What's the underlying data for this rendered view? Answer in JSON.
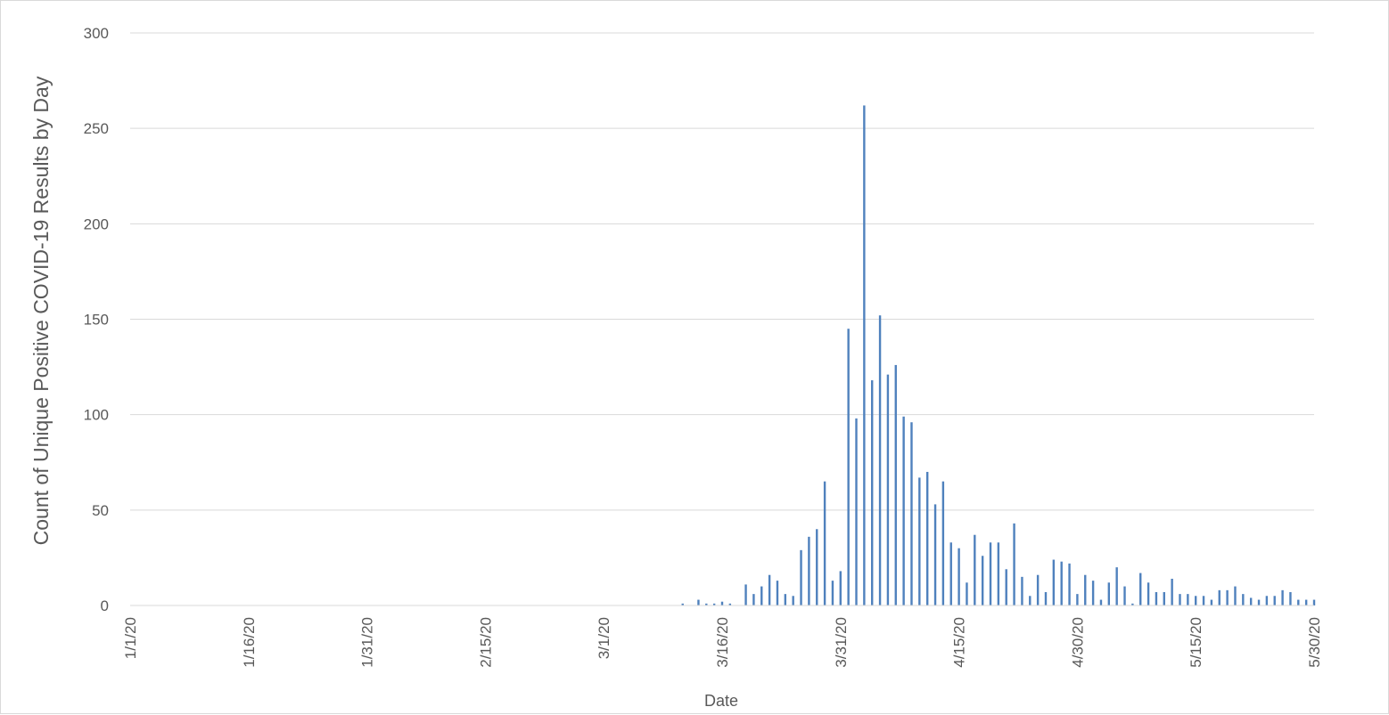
{
  "chart_data": {
    "type": "bar",
    "title": "",
    "xlabel": "Date",
    "ylabel": "Count of Unique Positive COVID-19 Results by Day",
    "ylim": [
      0,
      300
    ],
    "yticks": [
      "0",
      "50",
      "100",
      "150",
      "200",
      "250",
      "300"
    ],
    "xlim": [
      "2020-01-01",
      "2020-05-30"
    ],
    "xtick_labels": [
      {
        "date": "2020-01-01",
        "label": "1/1/20"
      },
      {
        "date": "2020-01-16",
        "label": "1/16/20"
      },
      {
        "date": "2020-01-31",
        "label": "1/31/20"
      },
      {
        "date": "2020-02-15",
        "label": "2/15/20"
      },
      {
        "date": "2020-03-01",
        "label": "3/1/20"
      },
      {
        "date": "2020-03-16",
        "label": "3/16/20"
      },
      {
        "date": "2020-03-31",
        "label": "3/31/20"
      },
      {
        "date": "2020-04-15",
        "label": "4/15/20"
      },
      {
        "date": "2020-04-30",
        "label": "4/30/20"
      },
      {
        "date": "2020-05-15",
        "label": "5/15/20"
      },
      {
        "date": "2020-05-30",
        "label": "5/30/20"
      }
    ],
    "grid": true,
    "bar_color": "#4f81bd",
    "x": [
      "2020-03-11",
      "2020-03-13",
      "2020-03-14",
      "2020-03-15",
      "2020-03-16",
      "2020-03-17",
      "2020-03-19",
      "2020-03-20",
      "2020-03-21",
      "2020-03-22",
      "2020-03-23",
      "2020-03-24",
      "2020-03-25",
      "2020-03-26",
      "2020-03-27",
      "2020-03-28",
      "2020-03-29",
      "2020-03-30",
      "2020-03-31",
      "2020-04-01",
      "2020-04-02",
      "2020-04-03",
      "2020-04-04",
      "2020-04-05",
      "2020-04-06",
      "2020-04-07",
      "2020-04-08",
      "2020-04-09",
      "2020-04-10",
      "2020-04-11",
      "2020-04-12",
      "2020-04-13",
      "2020-04-14",
      "2020-04-15",
      "2020-04-16",
      "2020-04-17",
      "2020-04-18",
      "2020-04-19",
      "2020-04-20",
      "2020-04-21",
      "2020-04-22",
      "2020-04-23",
      "2020-04-24",
      "2020-04-25",
      "2020-04-26",
      "2020-04-27",
      "2020-04-28",
      "2020-04-29",
      "2020-04-30",
      "2020-05-01",
      "2020-05-02",
      "2020-05-03",
      "2020-05-04",
      "2020-05-05",
      "2020-05-06",
      "2020-05-07",
      "2020-05-08",
      "2020-05-09",
      "2020-05-10",
      "2020-05-11",
      "2020-05-12",
      "2020-05-13",
      "2020-05-14",
      "2020-05-15",
      "2020-05-16",
      "2020-05-17",
      "2020-05-18",
      "2020-05-19",
      "2020-05-20",
      "2020-05-21",
      "2020-05-22",
      "2020-05-23",
      "2020-05-24",
      "2020-05-25",
      "2020-05-26",
      "2020-05-27",
      "2020-05-28",
      "2020-05-29",
      "2020-05-30"
    ],
    "values": [
      1,
      3,
      1,
      1,
      2,
      1,
      11,
      6,
      10,
      16,
      13,
      6,
      5,
      29,
      36,
      40,
      65,
      13,
      18,
      145,
      98,
      262,
      118,
      152,
      121,
      126,
      99,
      96,
      67,
      70,
      53,
      65,
      33,
      30,
      12,
      37,
      26,
      33,
      33,
      19,
      43,
      15,
      5,
      16,
      7,
      24,
      23,
      22,
      6,
      16,
      13,
      3,
      12,
      20,
      10,
      1,
      17,
      12,
      7,
      7,
      14,
      6,
      6,
      5,
      5,
      3,
      8,
      8,
      10,
      6,
      4,
      3,
      5,
      5,
      8,
      7,
      3,
      3,
      3
    ]
  }
}
